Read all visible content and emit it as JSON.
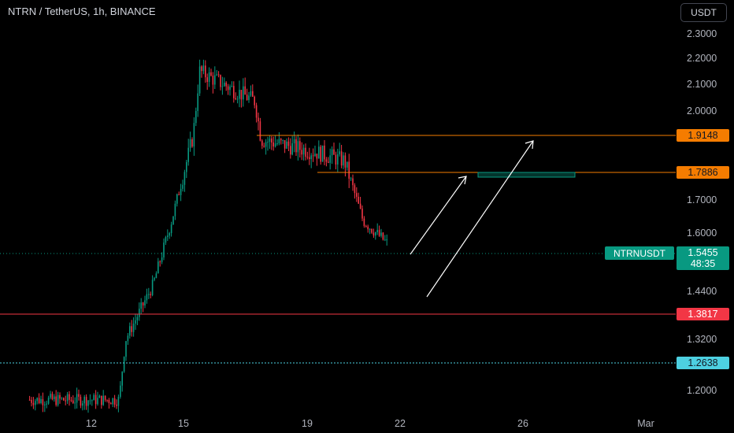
{
  "header": {
    "title": "NTRN / TetherUS, 1h, BINANCE",
    "currency_button": "USDT"
  },
  "price_axis": {
    "ticks": [
      "2.3000",
      "2.2000",
      "2.1000",
      "2.0000",
      "1.7000",
      "1.6000",
      "1.4400",
      "1.3200",
      "1.2000"
    ]
  },
  "time_axis": {
    "ticks": [
      "12",
      "15",
      "19",
      "22",
      "26",
      "Mar"
    ]
  },
  "levels": {
    "resistance_high": {
      "value": "1.9148",
      "color": "#f57c00"
    },
    "resistance_mid": {
      "value": "1.7886",
      "color": "#f57c00"
    },
    "support_red": {
      "value": "1.3817",
      "color": "#f23645"
    },
    "support_blue": {
      "value": "1.2638",
      "color": "#4dd0e1"
    }
  },
  "current": {
    "symbol": "NTRNUSDT",
    "price": "1.5455",
    "countdown": "48:35",
    "color": "#089981"
  },
  "colors": {
    "up": "#089981",
    "down": "#f23645",
    "background": "#000000",
    "text": "#d1d4dc"
  },
  "chart_data": {
    "type": "candlestick",
    "symbol": "NTRN / TetherUS",
    "interval": "1h",
    "exchange": "BINANCE",
    "ylim": [
      1.16,
      2.35
    ],
    "x_ticks": [
      "12",
      "15",
      "19",
      "22",
      "26",
      "Mar"
    ],
    "key_path": [
      {
        "x": "10",
        "y": 1.18
      },
      {
        "x": "12.9",
        "y": 1.18
      },
      {
        "x": "13.1",
        "y": 1.32
      },
      {
        "x": "14",
        "y": 1.45
      },
      {
        "x": "14.6",
        "y": 1.6
      },
      {
        "x": "15.3",
        "y": 1.8
      },
      {
        "x": "15.5",
        "y": 1.95
      },
      {
        "x": "17.3",
        "y": 1.88
      },
      {
        "x": "17.5",
        "y": 1.79
      },
      {
        "x": "19.3",
        "y": 1.76
      },
      {
        "x": "20.2",
        "y": 1.74
      },
      {
        "x": "20.8",
        "y": 1.6
      },
      {
        "x": "21.6",
        "y": 1.5455
      }
    ],
    "annotations": [
      {
        "type": "arrow",
        "from": {
          "x": "22.3",
          "y": 1.545
        },
        "to": {
          "x": "24.2",
          "y": 1.785
        }
      },
      {
        "type": "arrow",
        "from": {
          "x": "22.8",
          "y": 1.475
        },
        "to": {
          "x": "26.1",
          "y": 1.905
        }
      },
      {
        "type": "zone",
        "x_from": "24.2",
        "x_to": "26.8",
        "y_from": 1.782,
        "y_to": 1.792
      }
    ]
  }
}
